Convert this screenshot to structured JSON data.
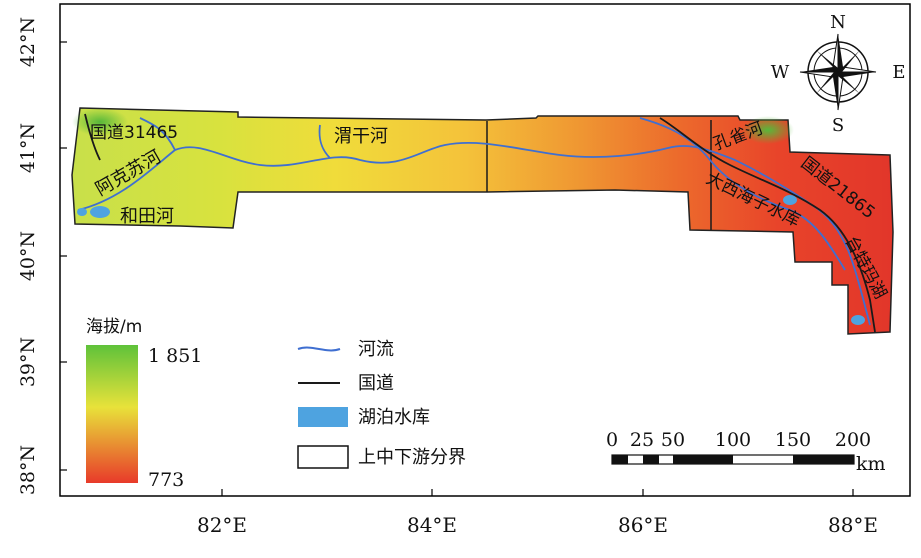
{
  "map": {
    "axes": {
      "lat_labels": [
        "42°N",
        "41°N",
        "40°N",
        "39°N",
        "38°N"
      ],
      "lon_labels": [
        "82°E",
        "84°E",
        "86°E",
        "88°E"
      ]
    },
    "features": {
      "road_1": "国道31465",
      "river_weigan": "渭干河",
      "river_akesu": "阿克苏河",
      "river_hetian": "和田河",
      "river_kongque": "孔雀河",
      "road_2": "国道21865",
      "reservoir": "大西海子水库",
      "lake_taitema": "台特玛湖"
    },
    "compass": {
      "n": "N",
      "s": "S",
      "e": "E",
      "w": "W"
    },
    "elevation_legend": {
      "title": "海拔/m",
      "max": "1 851",
      "min": "773",
      "color_high": "#5fc23a",
      "color_mid": "#e8e23a",
      "color_low": "#e83a2a"
    },
    "symbol_legend": {
      "river": "河流",
      "road": "国道",
      "lake": "湖泊水库",
      "boundary": "上中下游分界",
      "river_color": "#3f6fd1",
      "road_color": "#1a1a1a",
      "lake_color": "#4ea3e0"
    },
    "scale_bar": {
      "labels": [
        "0",
        "25",
        "50",
        "100",
        "150",
        "200"
      ],
      "unit": "km"
    }
  }
}
